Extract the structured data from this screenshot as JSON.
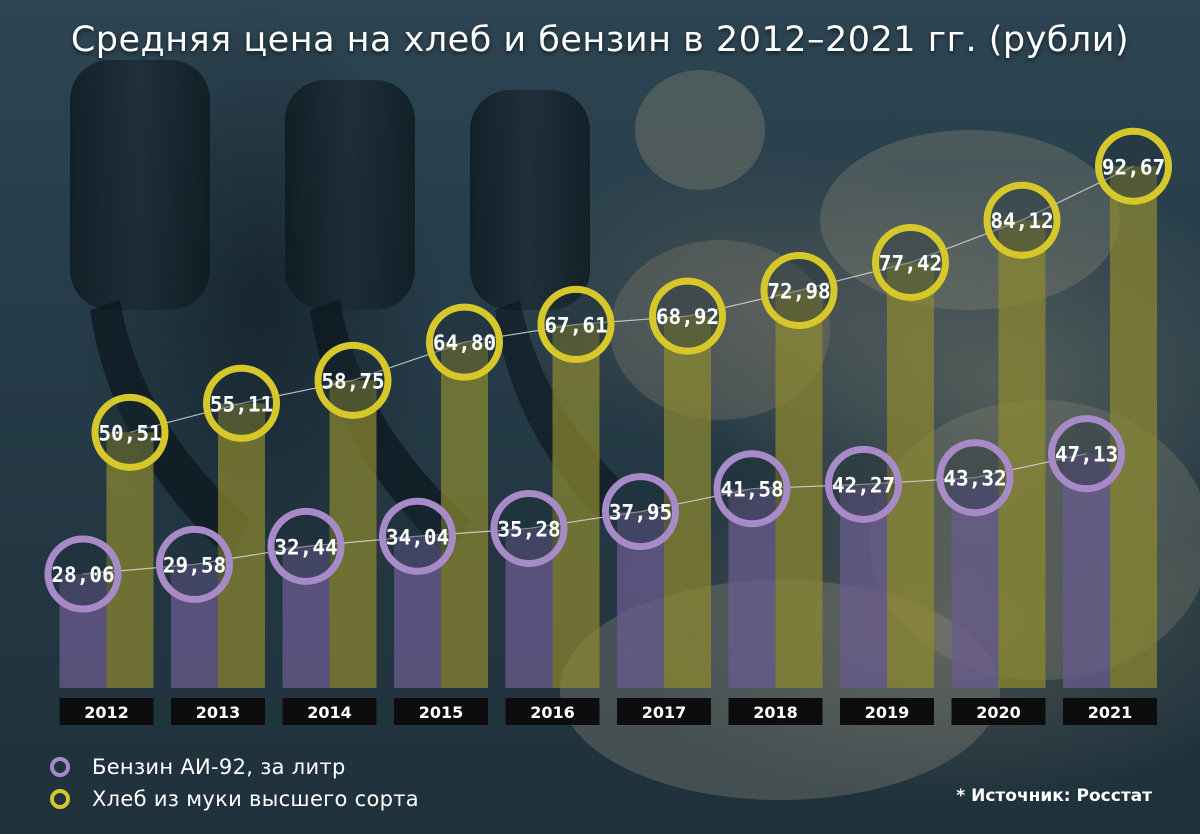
{
  "title": "Средняя цена на хлеб и бензин в 2012–2021 гг. (рубли)",
  "source": "* Источник: Росстат",
  "colors": {
    "bread": "#d6c72a",
    "fuel": "#a78ac7",
    "bread_bar": "#8f8a2e",
    "fuel_bar": "#6a5b8f",
    "year_box": "#0d0d0d",
    "connector": "#dddddd"
  },
  "chart_data": {
    "type": "bar",
    "title": "Средняя цена на хлеб и бензин в 2012–2021 гг. (рубли)",
    "categories": [
      "2012",
      "2013",
      "2014",
      "2015",
      "2016",
      "2017",
      "2018",
      "2019",
      "2020",
      "2021"
    ],
    "series": [
      {
        "name": "Бензин АИ-92, за литр",
        "values": [
          28.06,
          29.58,
          32.44,
          34.04,
          35.28,
          37.95,
          41.58,
          42.27,
          43.32,
          47.13
        ],
        "labels": [
          "28,06",
          "29,58",
          "32,44",
          "34,04",
          "35,28",
          "37,95",
          "41,58",
          "42,27",
          "43,32",
          "47,13"
        ]
      },
      {
        "name": "Хлеб из муки высшего сорта",
        "values": [
          50.51,
          55.11,
          58.75,
          64.8,
          67.61,
          68.92,
          72.98,
          77.42,
          84.12,
          92.67
        ],
        "labels": [
          "50,51",
          "55,11",
          "58,75",
          "64,80",
          "67,61",
          "68,92",
          "72,98",
          "77,42",
          "84,12",
          "92,67"
        ]
      }
    ],
    "legend_position": "bottom-left",
    "grid": false,
    "ylim": [
      0,
      100
    ]
  },
  "legend": [
    {
      "label": "Бензин АИ-92, за литр",
      "color": "#a78ac7"
    },
    {
      "label": "Хлеб из муки высшего сорта",
      "color": "#d6c72a"
    }
  ]
}
